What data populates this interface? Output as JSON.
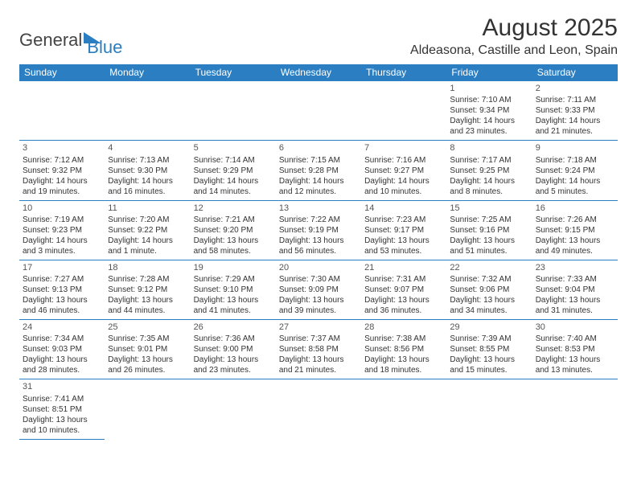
{
  "logo": {
    "general": "General",
    "blue": "Blue"
  },
  "title": "August 2025",
  "subtitle": "Aldeasona, Castille and Leon, Spain",
  "weekdays": [
    "Sunday",
    "Monday",
    "Tuesday",
    "Wednesday",
    "Thursday",
    "Friday",
    "Saturday"
  ],
  "colors": {
    "accent": "#2b7ec1",
    "text": "#333333",
    "bg": "#ffffff"
  },
  "grid": [
    [
      null,
      null,
      null,
      null,
      null,
      {
        "n": "1",
        "sr": "Sunrise: 7:10 AM",
        "ss": "Sunset: 9:34 PM",
        "d1": "Daylight: 14 hours",
        "d2": "and 23 minutes."
      },
      {
        "n": "2",
        "sr": "Sunrise: 7:11 AM",
        "ss": "Sunset: 9:33 PM",
        "d1": "Daylight: 14 hours",
        "d2": "and 21 minutes."
      }
    ],
    [
      {
        "n": "3",
        "sr": "Sunrise: 7:12 AM",
        "ss": "Sunset: 9:32 PM",
        "d1": "Daylight: 14 hours",
        "d2": "and 19 minutes."
      },
      {
        "n": "4",
        "sr": "Sunrise: 7:13 AM",
        "ss": "Sunset: 9:30 PM",
        "d1": "Daylight: 14 hours",
        "d2": "and 16 minutes."
      },
      {
        "n": "5",
        "sr": "Sunrise: 7:14 AM",
        "ss": "Sunset: 9:29 PM",
        "d1": "Daylight: 14 hours",
        "d2": "and 14 minutes."
      },
      {
        "n": "6",
        "sr": "Sunrise: 7:15 AM",
        "ss": "Sunset: 9:28 PM",
        "d1": "Daylight: 14 hours",
        "d2": "and 12 minutes."
      },
      {
        "n": "7",
        "sr": "Sunrise: 7:16 AM",
        "ss": "Sunset: 9:27 PM",
        "d1": "Daylight: 14 hours",
        "d2": "and 10 minutes."
      },
      {
        "n": "8",
        "sr": "Sunrise: 7:17 AM",
        "ss": "Sunset: 9:25 PM",
        "d1": "Daylight: 14 hours",
        "d2": "and 8 minutes."
      },
      {
        "n": "9",
        "sr": "Sunrise: 7:18 AM",
        "ss": "Sunset: 9:24 PM",
        "d1": "Daylight: 14 hours",
        "d2": "and 5 minutes."
      }
    ],
    [
      {
        "n": "10",
        "sr": "Sunrise: 7:19 AM",
        "ss": "Sunset: 9:23 PM",
        "d1": "Daylight: 14 hours",
        "d2": "and 3 minutes."
      },
      {
        "n": "11",
        "sr": "Sunrise: 7:20 AM",
        "ss": "Sunset: 9:22 PM",
        "d1": "Daylight: 14 hours",
        "d2": "and 1 minute."
      },
      {
        "n": "12",
        "sr": "Sunrise: 7:21 AM",
        "ss": "Sunset: 9:20 PM",
        "d1": "Daylight: 13 hours",
        "d2": "and 58 minutes."
      },
      {
        "n": "13",
        "sr": "Sunrise: 7:22 AM",
        "ss": "Sunset: 9:19 PM",
        "d1": "Daylight: 13 hours",
        "d2": "and 56 minutes."
      },
      {
        "n": "14",
        "sr": "Sunrise: 7:23 AM",
        "ss": "Sunset: 9:17 PM",
        "d1": "Daylight: 13 hours",
        "d2": "and 53 minutes."
      },
      {
        "n": "15",
        "sr": "Sunrise: 7:25 AM",
        "ss": "Sunset: 9:16 PM",
        "d1": "Daylight: 13 hours",
        "d2": "and 51 minutes."
      },
      {
        "n": "16",
        "sr": "Sunrise: 7:26 AM",
        "ss": "Sunset: 9:15 PM",
        "d1": "Daylight: 13 hours",
        "d2": "and 49 minutes."
      }
    ],
    [
      {
        "n": "17",
        "sr": "Sunrise: 7:27 AM",
        "ss": "Sunset: 9:13 PM",
        "d1": "Daylight: 13 hours",
        "d2": "and 46 minutes."
      },
      {
        "n": "18",
        "sr": "Sunrise: 7:28 AM",
        "ss": "Sunset: 9:12 PM",
        "d1": "Daylight: 13 hours",
        "d2": "and 44 minutes."
      },
      {
        "n": "19",
        "sr": "Sunrise: 7:29 AM",
        "ss": "Sunset: 9:10 PM",
        "d1": "Daylight: 13 hours",
        "d2": "and 41 minutes."
      },
      {
        "n": "20",
        "sr": "Sunrise: 7:30 AM",
        "ss": "Sunset: 9:09 PM",
        "d1": "Daylight: 13 hours",
        "d2": "and 39 minutes."
      },
      {
        "n": "21",
        "sr": "Sunrise: 7:31 AM",
        "ss": "Sunset: 9:07 PM",
        "d1": "Daylight: 13 hours",
        "d2": "and 36 minutes."
      },
      {
        "n": "22",
        "sr": "Sunrise: 7:32 AM",
        "ss": "Sunset: 9:06 PM",
        "d1": "Daylight: 13 hours",
        "d2": "and 34 minutes."
      },
      {
        "n": "23",
        "sr": "Sunrise: 7:33 AM",
        "ss": "Sunset: 9:04 PM",
        "d1": "Daylight: 13 hours",
        "d2": "and 31 minutes."
      }
    ],
    [
      {
        "n": "24",
        "sr": "Sunrise: 7:34 AM",
        "ss": "Sunset: 9:03 PM",
        "d1": "Daylight: 13 hours",
        "d2": "and 28 minutes."
      },
      {
        "n": "25",
        "sr": "Sunrise: 7:35 AM",
        "ss": "Sunset: 9:01 PM",
        "d1": "Daylight: 13 hours",
        "d2": "and 26 minutes."
      },
      {
        "n": "26",
        "sr": "Sunrise: 7:36 AM",
        "ss": "Sunset: 9:00 PM",
        "d1": "Daylight: 13 hours",
        "d2": "and 23 minutes."
      },
      {
        "n": "27",
        "sr": "Sunrise: 7:37 AM",
        "ss": "Sunset: 8:58 PM",
        "d1": "Daylight: 13 hours",
        "d2": "and 21 minutes."
      },
      {
        "n": "28",
        "sr": "Sunrise: 7:38 AM",
        "ss": "Sunset: 8:56 PM",
        "d1": "Daylight: 13 hours",
        "d2": "and 18 minutes."
      },
      {
        "n": "29",
        "sr": "Sunrise: 7:39 AM",
        "ss": "Sunset: 8:55 PM",
        "d1": "Daylight: 13 hours",
        "d2": "and 15 minutes."
      },
      {
        "n": "30",
        "sr": "Sunrise: 7:40 AM",
        "ss": "Sunset: 8:53 PM",
        "d1": "Daylight: 13 hours",
        "d2": "and 13 minutes."
      }
    ],
    [
      {
        "n": "31",
        "sr": "Sunrise: 7:41 AM",
        "ss": "Sunset: 8:51 PM",
        "d1": "Daylight: 13 hours",
        "d2": "and 10 minutes."
      },
      null,
      null,
      null,
      null,
      null,
      null
    ]
  ]
}
